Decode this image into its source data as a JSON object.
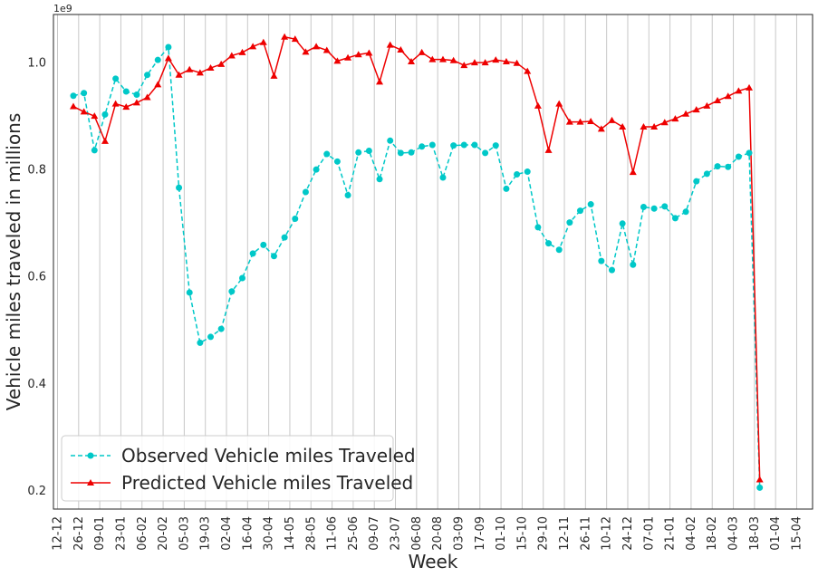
{
  "chart_data": {
    "type": "line",
    "xlabel": "Week",
    "ylabel": "Vehicle miles traveled in millions",
    "y_offset_label": "1e9",
    "x_tick_labels": [
      "12-12",
      "26-12",
      "09-01",
      "23-01",
      "06-02",
      "20-02",
      "05-03",
      "19-03",
      "02-04",
      "16-04",
      "30-04",
      "14-05",
      "28-05",
      "11-06",
      "25-06",
      "09-07",
      "23-07",
      "06-08",
      "20-08",
      "03-09",
      "17-09",
      "01-10",
      "15-10",
      "29-10",
      "12-11",
      "26-11",
      "10-12",
      "24-12",
      "07-01",
      "21-01",
      "04-02",
      "18-02",
      "04-03",
      "18-03",
      "01-04",
      "15-04"
    ],
    "y_tick_labels": [
      "0.2",
      "0.4",
      "0.6",
      "0.8",
      "1.0"
    ],
    "y_tick_values": [
      0.2,
      0.4,
      0.6,
      0.8,
      1.0
    ],
    "ylim": [
      0.165,
      1.09
    ],
    "grid": "vertical",
    "legend_position": "lower-left",
    "colors": {
      "observed": "#00c8c8",
      "predicted": "#ee0000"
    },
    "series": [
      {
        "name": "Observed Vehicle miles Traveled",
        "style": "dashed-circle",
        "values": [
          0.938,
          0.943,
          0.836,
          0.903,
          0.97,
          0.946,
          0.94,
          0.977,
          1.005,
          1.029,
          0.766,
          0.57,
          0.476,
          0.487,
          0.502,
          0.572,
          0.597,
          0.643,
          0.659,
          0.638,
          0.673,
          0.708,
          0.758,
          0.8,
          0.829,
          0.815,
          0.752,
          0.832,
          0.835,
          0.782,
          0.854,
          0.831,
          0.832,
          0.843,
          0.846,
          0.785,
          0.845,
          0.846,
          0.846,
          0.831,
          0.845,
          0.764,
          0.791,
          0.796,
          0.692,
          0.662,
          0.65,
          0.701,
          0.723,
          0.735,
          0.629,
          0.612,
          0.699,
          0.622,
          0.73,
          0.727,
          0.731,
          0.709,
          0.721,
          0.778,
          0.792,
          0.806,
          0.805,
          0.824,
          0.831,
          0.205
        ]
      },
      {
        "name": "Predicted Vehicle miles Traveled",
        "style": "solid-triangle",
        "values": [
          0.918,
          0.908,
          0.9,
          0.853,
          0.923,
          0.917,
          0.925,
          0.935,
          0.959,
          1.008,
          0.977,
          0.987,
          0.981,
          0.99,
          0.997,
          1.013,
          1.019,
          1.03,
          1.038,
          0.975,
          1.048,
          1.044,
          1.02,
          1.03,
          1.023,
          1.003,
          1.009,
          1.015,
          1.018,
          0.964,
          1.033,
          1.024,
          1.002,
          1.019,
          1.006,
          1.006,
          1.004,
          0.995,
          1.0,
          1.0,
          1.005,
          1.002,
          0.999,
          0.984,
          0.919,
          0.836,
          0.923,
          0.889,
          0.889,
          0.89,
          0.876,
          0.892,
          0.88,
          0.795,
          0.88,
          0.88,
          0.888,
          0.895,
          0.904,
          0.912,
          0.919,
          0.929,
          0.937,
          0.947,
          0.953,
          0.22
        ]
      }
    ]
  }
}
